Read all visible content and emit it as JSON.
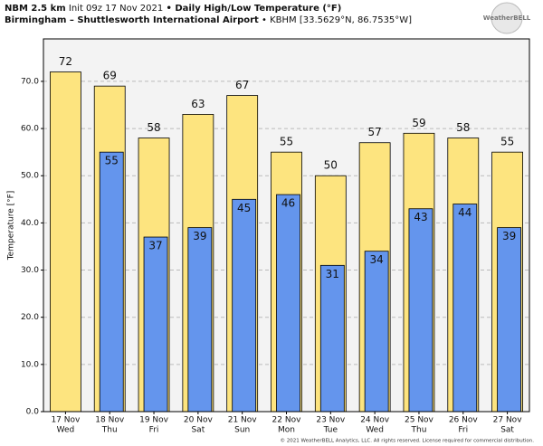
{
  "chart_data": {
    "type": "bar",
    "title_model": "NBM 2.5 km",
    "title_init": "Init 09z 17 Nov 2021",
    "title_product": "• Daily High/Low Temperature (°F)",
    "subtitle_station": "Birmingham – Shuttlesworth International Airport",
    "subtitle_location": "• KBHM [33.5629°N, 86.7535°W]",
    "logo": "WeatherBELL",
    "footer": "© 2021 WeatherBELL Analytics, LLC. All rights reserved. License required for commercial distribution.",
    "y_label": "Temperature [°F]",
    "categories": [
      [
        "17 Nov",
        "Wed"
      ],
      [
        "18 Nov",
        "Thu"
      ],
      [
        "19 Nov",
        "Fri"
      ],
      [
        "20 Nov",
        "Sat"
      ],
      [
        "21 Nov",
        "Sun"
      ],
      [
        "22 Nov",
        "Mon"
      ],
      [
        "23 Nov",
        "Tue"
      ],
      [
        "24 Nov",
        "Wed"
      ],
      [
        "25 Nov",
        "Thu"
      ],
      [
        "26 Nov",
        "Fri"
      ],
      [
        "27 Nov",
        "Sat"
      ]
    ],
    "series": [
      {
        "color": "#fde47f",
        "values": [
          72,
          69,
          58,
          63,
          67,
          55,
          50,
          57,
          59,
          58,
          55
        ]
      },
      {
        "color": "#6495ed",
        "values": [
          null,
          55,
          37,
          39,
          45,
          46,
          31,
          34,
          43,
          44,
          39
        ]
      }
    ],
    "ylim": [
      0,
      79
    ],
    "yticks": [
      {
        "value": 0,
        "label": "0.0"
      },
      {
        "value": 10,
        "label": "10.0"
      },
      {
        "value": 20,
        "label": "20.0"
      },
      {
        "value": 30,
        "label": "30.0"
      },
      {
        "value": 40,
        "label": "40.0"
      },
      {
        "value": 50,
        "label": "50.0"
      },
      {
        "value": 60,
        "label": "60.0"
      },
      {
        "value": 70,
        "label": "70.0"
      }
    ],
    "grid": true
  }
}
